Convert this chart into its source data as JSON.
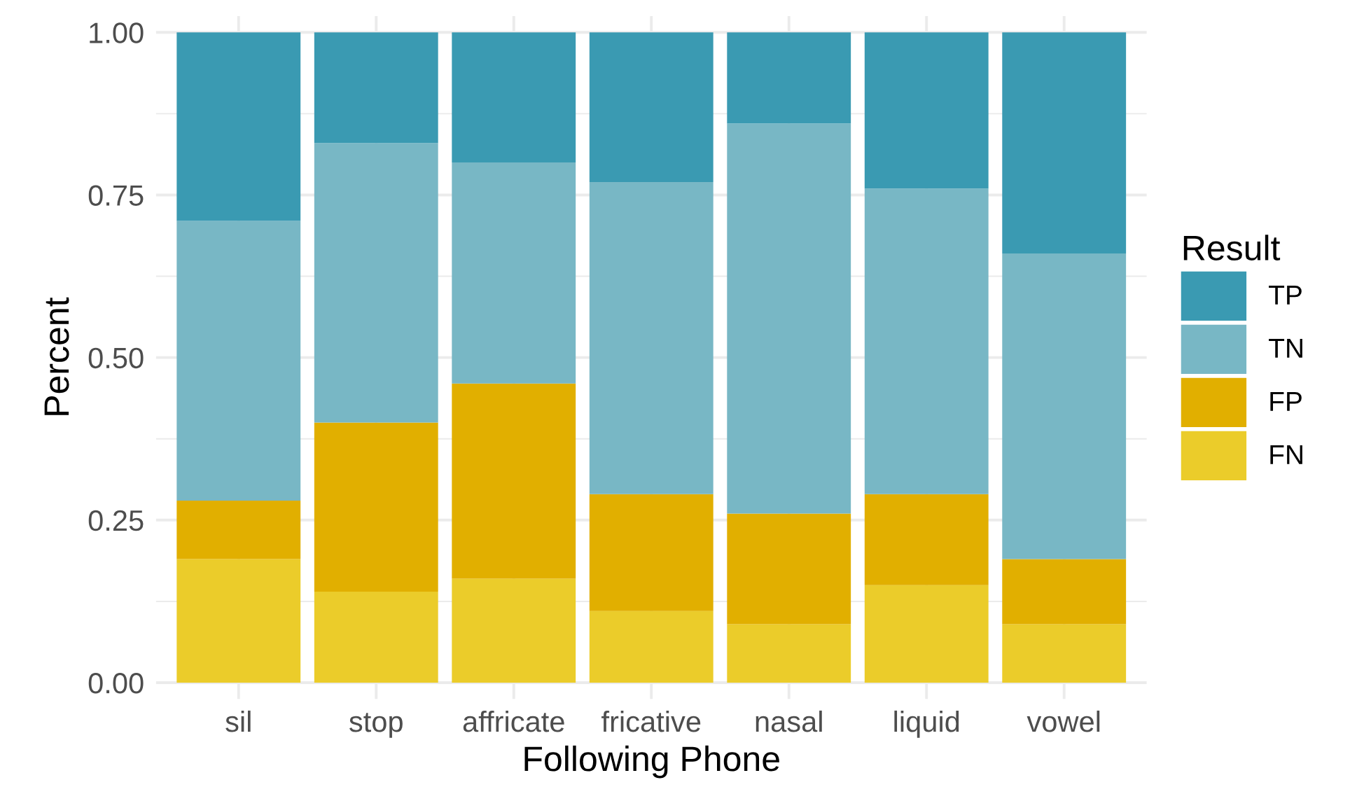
{
  "chart_data": {
    "type": "bar",
    "stacked": true,
    "xlabel": "Following Phone",
    "ylabel": "Percent",
    "legend_title": "Result",
    "legend": "right",
    "grid": true,
    "categories": [
      "sil",
      "stop",
      "affricate",
      "fricative",
      "nasal",
      "liquid",
      "vowel"
    ],
    "series": [
      {
        "name": "FN",
        "color": "#ebcc2a",
        "values": [
          0.19,
          0.14,
          0.16,
          0.11,
          0.09,
          0.15,
          0.09
        ]
      },
      {
        "name": "FP",
        "color": "#e1af00",
        "values": [
          0.09,
          0.26,
          0.3,
          0.18,
          0.17,
          0.14,
          0.1
        ]
      },
      {
        "name": "TN",
        "color": "#78b7c5",
        "values": [
          0.43,
          0.43,
          0.34,
          0.48,
          0.6,
          0.47,
          0.47
        ]
      },
      {
        "name": "TP",
        "color": "#3a9ab2",
        "values": [
          0.29,
          0.17,
          0.2,
          0.23,
          0.14,
          0.24,
          0.34
        ]
      }
    ],
    "ylim": [
      -0.025,
      1.025
    ],
    "yticks": [
      {
        "value": 0,
        "label": "0.00"
      },
      {
        "value": 0.25,
        "label": "0.25"
      },
      {
        "value": 0.5,
        "label": "0.50"
      },
      {
        "value": 0.75,
        "label": "0.75"
      },
      {
        "value": 1,
        "label": "1.00"
      }
    ]
  }
}
